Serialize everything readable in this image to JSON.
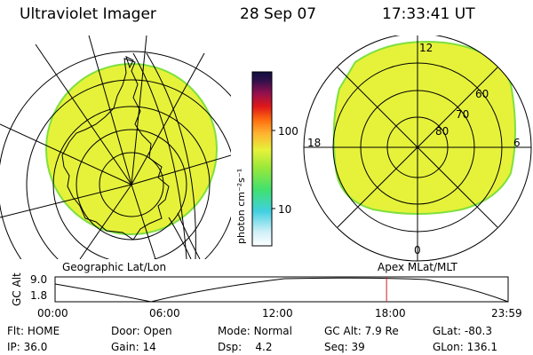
{
  "header": {
    "instrument": "Ultraviolet Imager",
    "date": "28 Sep 07",
    "time": "17:33:41 UT"
  },
  "left_panel": {
    "label": "Geographic Lat/Lon"
  },
  "right_panel": {
    "label": "Apex MLat/MLT",
    "mlt_labels": [
      "12",
      "18",
      "6",
      "0"
    ],
    "lat_labels": [
      "60",
      "70",
      "80"
    ]
  },
  "colorbar": {
    "unit_label": "photon cm⁻²s⁻¹",
    "tick_labels": [
      "100",
      "10"
    ],
    "scale": "log"
  },
  "timeline": {
    "y_label": "GC Alt",
    "y_ticks": [
      "9.0",
      "1.8"
    ],
    "x_ticks": [
      "00:00",
      "06:00",
      "12:00",
      "18:00",
      "23:59"
    ],
    "current_time_hours": 17.56,
    "marker_color": "#d02020"
  },
  "status": [
    [
      {
        "label": "Flt:",
        "value": "HOME"
      },
      {
        "label": "IP:",
        "value": "36.0"
      }
    ],
    [
      {
        "label": "Door:",
        "value": "Open"
      },
      {
        "label": "Gain:",
        "value": "14"
      }
    ],
    [
      {
        "label": "Mode:",
        "value": "Normal"
      },
      {
        "label": "Dsp:",
        "value": "4.2"
      }
    ],
    [
      {
        "label": "GC Alt:",
        "value": "7.9 Re"
      },
      {
        "label": "Seq:",
        "value": "39"
      }
    ],
    [
      {
        "label": "GLat:",
        "value": "-80.3"
      },
      {
        "label": "GLon:",
        "value": "136.1"
      }
    ]
  ],
  "colors": {
    "fill": "#e6f23a",
    "fill_edge": "#7ee03e",
    "background": "#ffffff"
  }
}
